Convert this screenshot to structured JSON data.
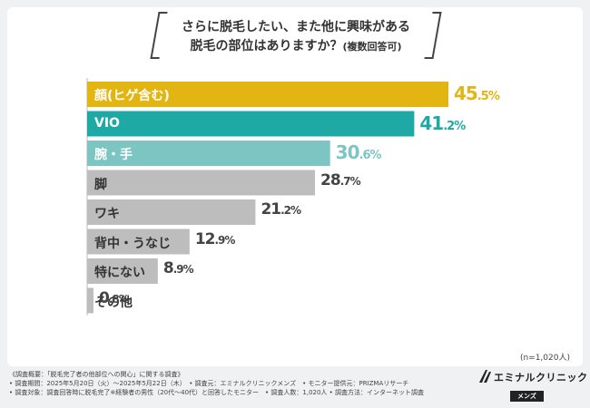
{
  "title": {
    "line1": "さらに脱毛したい、また他に興味がある",
    "line2": "脱毛の部位はありますか？",
    "line2_sub": "(複数回答可)"
  },
  "chart_data": {
    "type": "bar",
    "orientation": "horizontal",
    "title": "さらに脱毛したい、また他に興味がある脱毛の部位はありますか？(複数回答可)",
    "categories": [
      "顔(ヒゲ含む)",
      "VIO",
      "腕・手",
      "脚",
      "ワキ",
      "背中・うなじ",
      "特にない",
      "その他"
    ],
    "values": [
      45.5,
      41.2,
      30.6,
      28.7,
      21.2,
      12.9,
      8.9,
      0.8
    ],
    "value_texts": [
      {
        "int": "45",
        "dec": ".5%"
      },
      {
        "int": "41",
        "dec": ".2%"
      },
      {
        "int": "30",
        "dec": ".6%"
      },
      {
        "int": "28",
        "dec": ".7%"
      },
      {
        "int": "21",
        "dec": ".2%"
      },
      {
        "int": "12",
        "dec": ".9%"
      },
      {
        "int": "8",
        "dec": ".9%"
      },
      {
        "int": "0",
        "dec": ".8%"
      }
    ],
    "colors": [
      "#e3b512",
      "#1ea9a4",
      "#7cc5c2",
      "#bdbdbd",
      "#bdbdbd",
      "#bdbdbd",
      "#bdbdbd",
      "#bdbdbd"
    ],
    "value_colors": [
      "#e3b512",
      "#1ea9a4",
      "#7cc5c2",
      "#444444",
      "#444444",
      "#444444",
      "#444444",
      "#444444"
    ],
    "xlim": [
      0,
      45.5
    ],
    "grid": false,
    "legend": "none"
  },
  "sample_note": "(n=1,020人)",
  "footer": {
    "line1": "《調査概要：「脱毛完了者の他部位への関心」に関する調査》",
    "line2": "• 調査期間：2025年5月20日（火）～2025年5月22日（木）　• 調査元：エミナルクリニックメンズ　• モニター提供元：PRIZMAリサーチ",
    "line3": "• 調査対象：調査回答時に脱毛完了※経験者の男性（20代～40代）と回答したモニター　• 調査人数：1,020人 • 調査方法：インターネット調査"
  },
  "logo": {
    "name": "エミナルクリニック",
    "sub": "メンズ"
  }
}
